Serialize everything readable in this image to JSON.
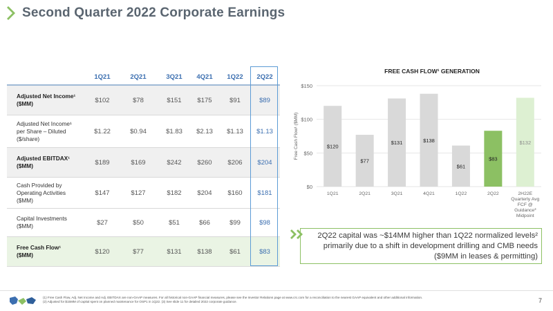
{
  "header": {
    "title": "Second Quarter 2022 Corporate Earnings"
  },
  "table": {
    "columns": [
      "1Q21",
      "2Q21",
      "3Q21",
      "4Q21",
      "1Q22",
      "2Q22"
    ],
    "rows": [
      {
        "label_lines": [
          "Adjusted Net Income¹",
          "($MM)"
        ],
        "values": [
          "$102",
          "$78",
          "$151",
          "$175",
          "$91",
          "$89"
        ]
      },
      {
        "label_lines": [
          "Adjusted Net Income¹",
          "per Share – Diluted",
          "($/share)"
        ],
        "values": [
          "$1.22",
          "$0.94",
          "$1.83",
          "$2.13",
          "$1.13",
          "$1.13"
        ]
      },
      {
        "label_lines": [
          "Adjusted EBITDAX¹",
          "($MM)"
        ],
        "values": [
          "$189",
          "$169",
          "$242",
          "$260",
          "$206",
          "$204"
        ]
      },
      {
        "label_lines": [
          "Cash Provided by",
          "Operating Activities",
          "($MM)"
        ],
        "values": [
          "$147",
          "$127",
          "$182",
          "$204",
          "$160",
          "$181"
        ]
      },
      {
        "label_lines": [
          "Capital Investments",
          "($MM)"
        ],
        "values": [
          "$27",
          "$50",
          "$51",
          "$66",
          "$99",
          "$98"
        ]
      },
      {
        "label_lines": [
          "Free Cash Flow¹",
          "($MM)"
        ],
        "values": [
          "$120",
          "$77",
          "$131",
          "$138",
          "$61",
          "$83"
        ]
      }
    ]
  },
  "chart_data": {
    "type": "bar",
    "title": "FREE CASH FLOW¹ GENERATION",
    "ylabel": "Free Cash Flow¹ ($MM)",
    "ylim": [
      0,
      150
    ],
    "yticks": [
      "$0",
      "$50",
      "$100",
      "$150"
    ],
    "categories": [
      "1Q21",
      "2Q21",
      "3Q21",
      "4Q21",
      "1Q22",
      "2Q22",
      "2H22E Quarterly Avg FCF @ Guidance³ Midpoint"
    ],
    "category_lines": [
      [
        "1Q21"
      ],
      [
        "2Q21"
      ],
      [
        "3Q21"
      ],
      [
        "4Q21"
      ],
      [
        "1Q22"
      ],
      [
        "2Q22"
      ],
      [
        "2H22E",
        "Quarterly Avg",
        "FCF @",
        "Guidance³",
        "Midpoint"
      ]
    ],
    "values": [
      120,
      77,
      131,
      138,
      61,
      83,
      132
    ],
    "value_labels": [
      "$120",
      "$77",
      "$131",
      "$138",
      "$61",
      "$83",
      "$132"
    ],
    "colors": [
      "#d9d9d9",
      "#d9d9d9",
      "#d9d9d9",
      "#d9d9d9",
      "#d9d9d9",
      "#8cc063",
      "#ddf0d2"
    ],
    "grid": true
  },
  "callout": {
    "text": "2Q22 capital was ~$14MM higher than 1Q22 normalized levels² primarily due to a shift in development drilling and CMB needs ($9MM in leases & permitting)"
  },
  "footer": {
    "footnote_1": "(1) Free Cash Flow, Adj. Net Income and Adj. EBITDAX are non-GAAP measures. For all historical non-GAAP financial measures, please see the Investor Relations page at www.crc.com for a reconciliation to the nearest GAAP equivalent and other additional information.",
    "footnote_2": "(2) Adjusted for $15MM of capital spent on planned maintenance for OSP1 in 1Q22. (3) See slide 11 for detailed 2022 corporate guidance.",
    "page_number": "7"
  },
  "colors": {
    "accent_green": "#8cc063",
    "accent_blue": "#3c6fb0",
    "title_gray": "#5a6570"
  }
}
